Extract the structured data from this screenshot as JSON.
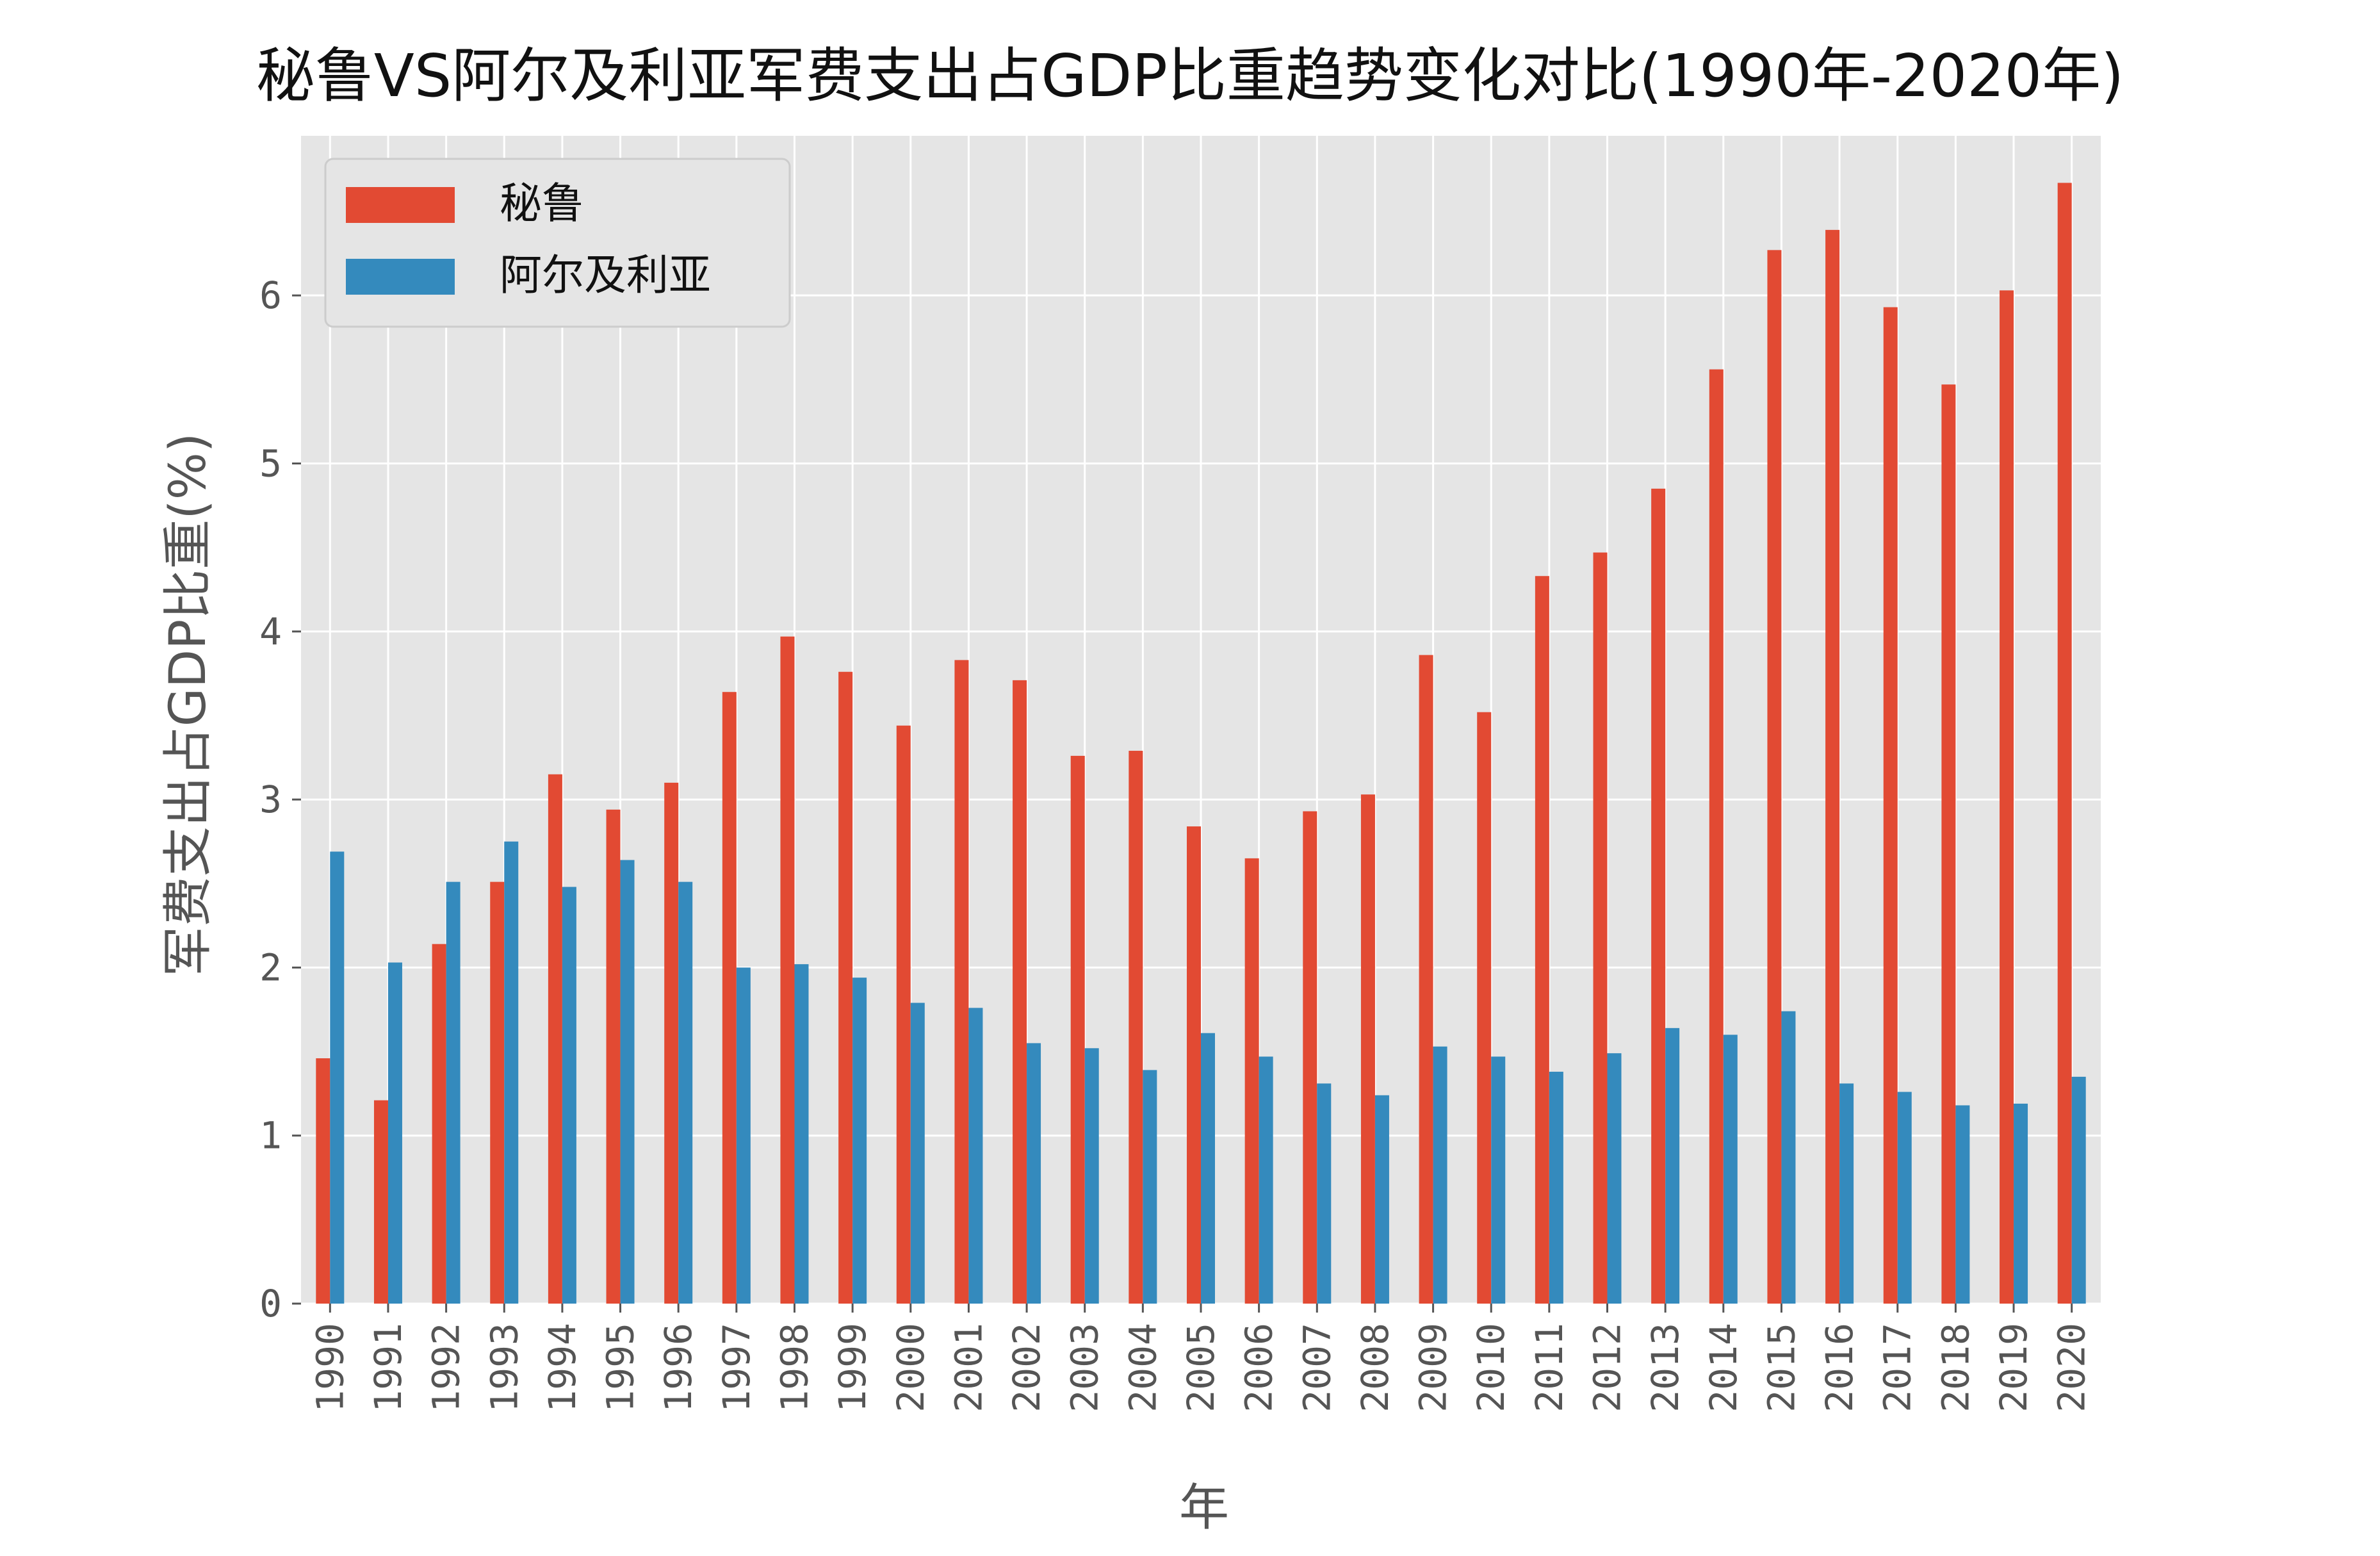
{
  "chart_data": {
    "type": "bar",
    "title": "秘鲁VS阿尔及利亚军费支出占GDP比重趋势变化对比(1990年-2020年)",
    "xlabel": "年",
    "ylabel": "军费支出占GDP比重(%)",
    "categories": [
      "1990",
      "1991",
      "1992",
      "1993",
      "1994",
      "1995",
      "1996",
      "1997",
      "1998",
      "1999",
      "2000",
      "2001",
      "2002",
      "2003",
      "2004",
      "2005",
      "2006",
      "2007",
      "2008",
      "2009",
      "2010",
      "2011",
      "2012",
      "2013",
      "2014",
      "2015",
      "2016",
      "2017",
      "2018",
      "2019",
      "2020"
    ],
    "series": [
      {
        "name": "秘鲁",
        "color": "#E24A33",
        "values": [
          1.46,
          1.21,
          2.14,
          2.51,
          3.15,
          2.94,
          3.1,
          3.64,
          3.97,
          3.76,
          3.44,
          3.83,
          3.71,
          3.26,
          3.29,
          2.84,
          2.65,
          2.93,
          3.03,
          3.86,
          3.52,
          4.33,
          4.47,
          4.85,
          5.56,
          6.27,
          6.39,
          5.93,
          5.47,
          6.03,
          6.67
        ]
      },
      {
        "name": "阿尔及利亚",
        "color": "#348ABD",
        "values": [
          2.69,
          2.03,
          2.51,
          2.75,
          2.48,
          2.64,
          2.51,
          2.0,
          2.02,
          1.94,
          1.79,
          1.76,
          1.55,
          1.52,
          1.39,
          1.61,
          1.47,
          1.31,
          1.24,
          1.53,
          1.47,
          1.38,
          1.49,
          1.64,
          1.6,
          1.74,
          1.31,
          1.26,
          1.18,
          1.19,
          1.35
        ]
      }
    ],
    "ylim": [
      0,
      6.95
    ],
    "yticks": [
      0,
      1,
      2,
      3,
      4,
      5,
      6
    ],
    "grid": true,
    "legend_position": "top-left",
    "background": "#E5E5E5",
    "grid_color": "#FFFFFF"
  }
}
